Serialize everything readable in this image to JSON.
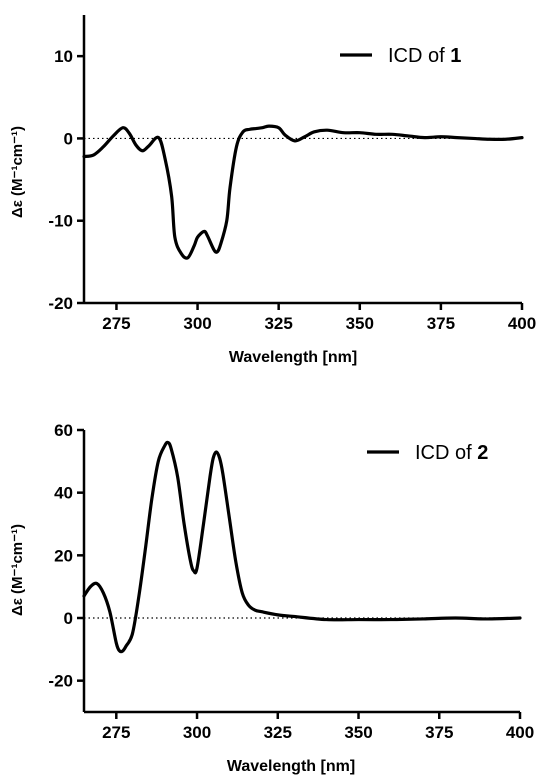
{
  "chart_data": [
    {
      "type": "line",
      "xlabel": "Wavelength [nm]",
      "ylabel": "Δε (M⁻¹cm⁻¹)",
      "xlim": [
        265,
        400
      ],
      "ylim": [
        -20,
        15
      ],
      "xticks": [
        "275",
        "300",
        "325",
        "350",
        "375",
        "400"
      ],
      "yticks": [
        "-20",
        "-10",
        "0",
        "10"
      ],
      "zero_reference": "dotted",
      "legend": {
        "placement": "top-right",
        "prefix": "ICD of ",
        "number": "1"
      },
      "series": [
        {
          "name": "ICD of 1",
          "color": "#000000",
          "x": [
            265,
            268,
            271,
            274,
            277,
            279,
            281,
            283,
            285,
            288,
            290,
            292,
            293,
            295,
            297,
            299,
            300,
            302,
            303,
            305,
            306,
            307,
            309,
            310,
            312,
            314,
            316,
            318,
            320,
            322,
            325,
            327,
            330,
            333,
            336,
            340,
            345,
            350,
            355,
            360,
            365,
            370,
            375,
            380,
            385,
            390,
            395,
            400
          ],
          "y": [
            -2.2,
            -2.0,
            -1.0,
            0.3,
            1.3,
            0.6,
            -0.8,
            -1.5,
            -0.9,
            0.1,
            -2.5,
            -7.0,
            -12.0,
            -14.0,
            -14.5,
            -13.0,
            -12.0,
            -11.3,
            -11.8,
            -13.5,
            -13.8,
            -13.0,
            -10.0,
            -6.0,
            -1.0,
            0.8,
            1.1,
            1.2,
            1.3,
            1.5,
            1.3,
            0.4,
            -0.3,
            0.2,
            0.8,
            1.0,
            0.7,
            0.7,
            0.5,
            0.5,
            0.3,
            0.1,
            0.2,
            0.1,
            0.0,
            -0.1,
            -0.1,
            0.1
          ]
        }
      ]
    },
    {
      "type": "line",
      "xlabel": "Wavelength [nm]",
      "ylabel": "Δε (M⁻¹cm⁻¹)",
      "xlim": [
        265,
        400
      ],
      "ylim": [
        -30,
        60
      ],
      "xticks": [
        "275",
        "300",
        "325",
        "350",
        "375",
        "400"
      ],
      "yticks": [
        "-20",
        "0",
        "20",
        "40",
        "60"
      ],
      "zero_reference": "dotted",
      "legend": {
        "placement": "top-right",
        "prefix": "ICD of ",
        "number": "2"
      },
      "series": [
        {
          "name": "ICD of 2",
          "color": "#000000",
          "x": [
            265,
            267,
            269,
            271,
            273,
            275,
            276,
            277,
            278,
            280,
            282,
            284,
            286,
            288,
            290,
            291,
            292,
            294,
            296,
            298,
            299,
            300,
            302,
            304,
            305,
            306,
            307,
            308,
            310,
            312,
            314,
            316,
            318,
            320,
            325,
            330,
            340,
            350,
            360,
            370,
            380,
            390,
            400
          ],
          "y": [
            7,
            10,
            11,
            8,
            2,
            -8,
            -10.5,
            -10.5,
            -9,
            -5,
            7,
            22,
            38,
            50,
            55,
            56,
            54,
            45,
            30,
            18,
            15,
            16,
            30,
            45,
            51,
            53,
            51,
            46,
            32,
            18,
            8,
            4,
            2.5,
            2,
            1,
            0.5,
            -0.5,
            -0.5,
            -0.5,
            -0.3,
            0,
            -0.3,
            0
          ]
        }
      ]
    }
  ]
}
